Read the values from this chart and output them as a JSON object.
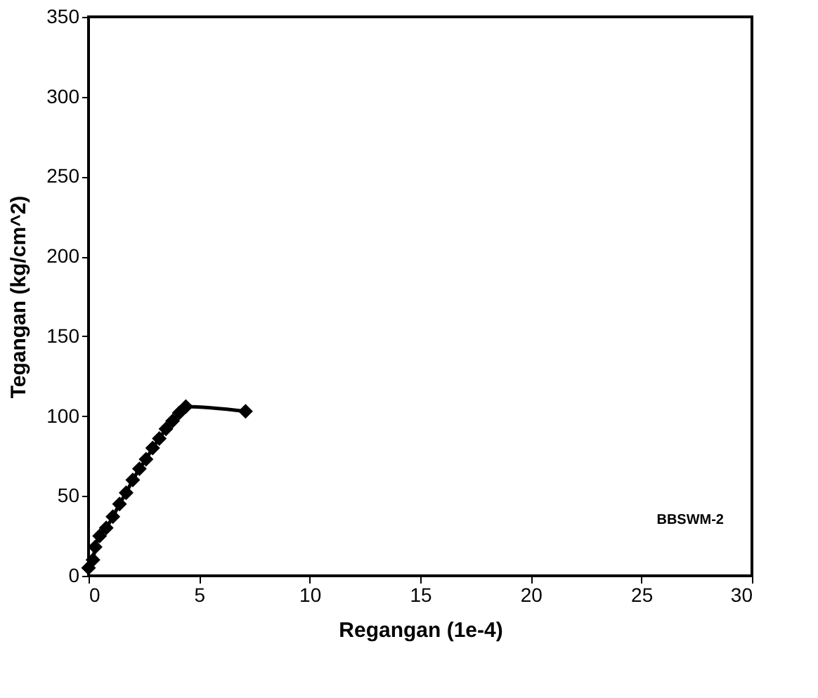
{
  "chart_data": {
    "type": "line",
    "xlabel": "Regangan (1e-4)",
    "ylabel": "Tegangan (kg/cm^2)",
    "annotations": [
      "BBSWM-2"
    ],
    "series": [
      {
        "color": "#000000",
        "x": [
          0,
          0.2,
          0.3,
          0.5,
          0.8,
          1.1,
          1.4,
          1.7,
          2.0,
          2.3,
          2.6,
          2.9,
          3.2,
          3.5,
          3.8,
          4.1,
          4.4,
          7.1
        ],
        "values": [
          5,
          10,
          18,
          25,
          30,
          37,
          45,
          52,
          60,
          67,
          73,
          80,
          86,
          92,
          97,
          102,
          106,
          103
        ]
      }
    ],
    "xlim": [
      0,
      30
    ],
    "xticks": [
      0,
      5,
      10,
      15,
      20,
      25,
      30
    ],
    "ylim": [
      0,
      350
    ],
    "yticks": [
      0,
      50,
      100,
      150,
      200,
      250,
      300,
      350
    ],
    "grid": false,
    "legend": false,
    "marker": "diamond",
    "line_style": "solid"
  }
}
